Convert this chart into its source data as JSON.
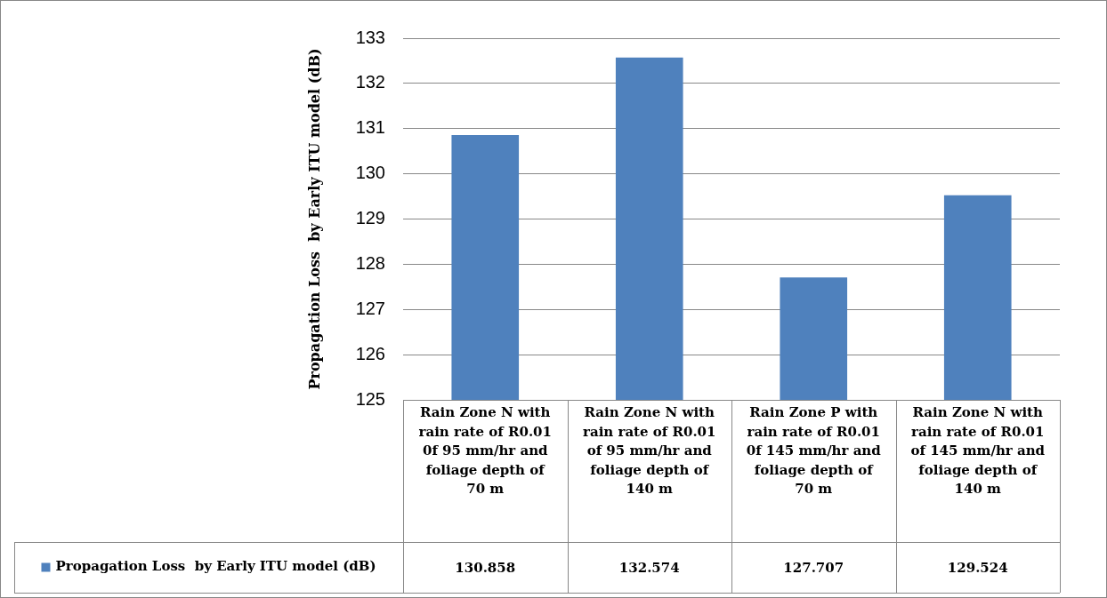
{
  "chart_data": {
    "type": "bar",
    "ylabel": "Propagation Loss  by Early ITU model (dB)",
    "categories": [
      "Rain Zone N with rain rate of R0.01 0f 95 mm/hr and foliage depth of 70 m",
      "Rain Zone N with rain rate of R0.01 of 95 mm/hr and foliage depth of 140 m",
      "Rain Zone P with rain rate of R0.01 0f 145 mm/hr and foliage depth of 70 m",
      "Rain Zone N with rain rate of R0.01 of 145 mm/hr and foliage depth of 140 m"
    ],
    "series": [
      {
        "name": "Propagation Loss  by Early ITU model (dB)",
        "color": "#4f81bd",
        "values": [
          130.858,
          132.574,
          127.707,
          129.524
        ]
      }
    ],
    "ylim": [
      125,
      133
    ],
    "yticks": [
      125,
      126,
      127,
      128,
      129,
      130,
      131,
      132,
      133
    ],
    "grid": "y",
    "legend": "bottom",
    "data_labels": true
  }
}
